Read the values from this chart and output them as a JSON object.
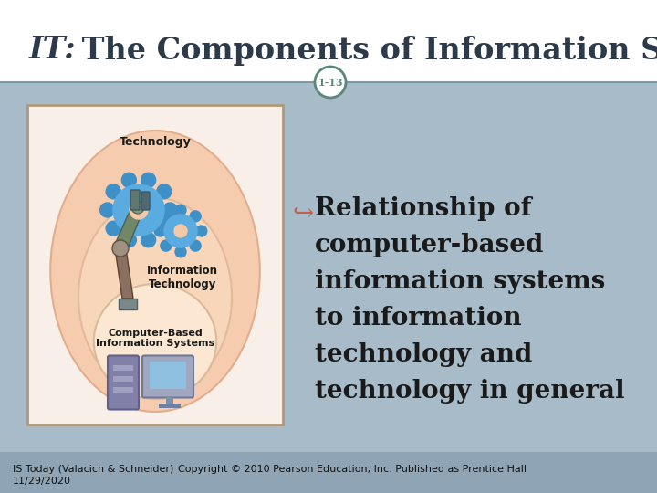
{
  "title_it": "IT:",
  "title_rest": " The Components of Information Systems",
  "slide_number": "1-13",
  "bullet_text_lines": [
    "Relationship of",
    "computer-based",
    "information systems",
    "to information",
    "technology and",
    "technology in general"
  ],
  "footer_left": "IS Today (Valacich & Schneider)",
  "footer_right": "Copyright © 2010 Pearson Education, Inc. Published as Prentice Hall",
  "footer_date": "11/29/2020",
  "bg_color": "#a8bbc8",
  "header_bg": "#ffffff",
  "footer_bg": "#8fa5b5",
  "title_color": "#2d3a4a",
  "border_color": "#7a9aaa",
  "slide_num_color": "#5a8878",
  "bullet_color": "#c06050",
  "text_color": "#1a1a1a",
  "footer_text_color": "#111111",
  "img_box_bg": "#f8f0e8",
  "img_box_border": "#b09878",
  "ellipse_outer_fill": "#f5c8a8",
  "ellipse_outer_edge": "#e0a888",
  "ellipse_mid_fill": "#f8d8bc",
  "ellipse_mid_edge": "#e0b898",
  "ellipse_inner_fill": "#fce8d4",
  "ellipse_inner_edge": "#d8b898",
  "gear_color": "#5aace0",
  "gear_dark": "#4090c8",
  "robot_body": "#7a9060",
  "robot_arm": "#8a5838",
  "monitor_color": "#8090b0",
  "monitor_screen": "#90c0e0",
  "tower_color": "#7878a0"
}
